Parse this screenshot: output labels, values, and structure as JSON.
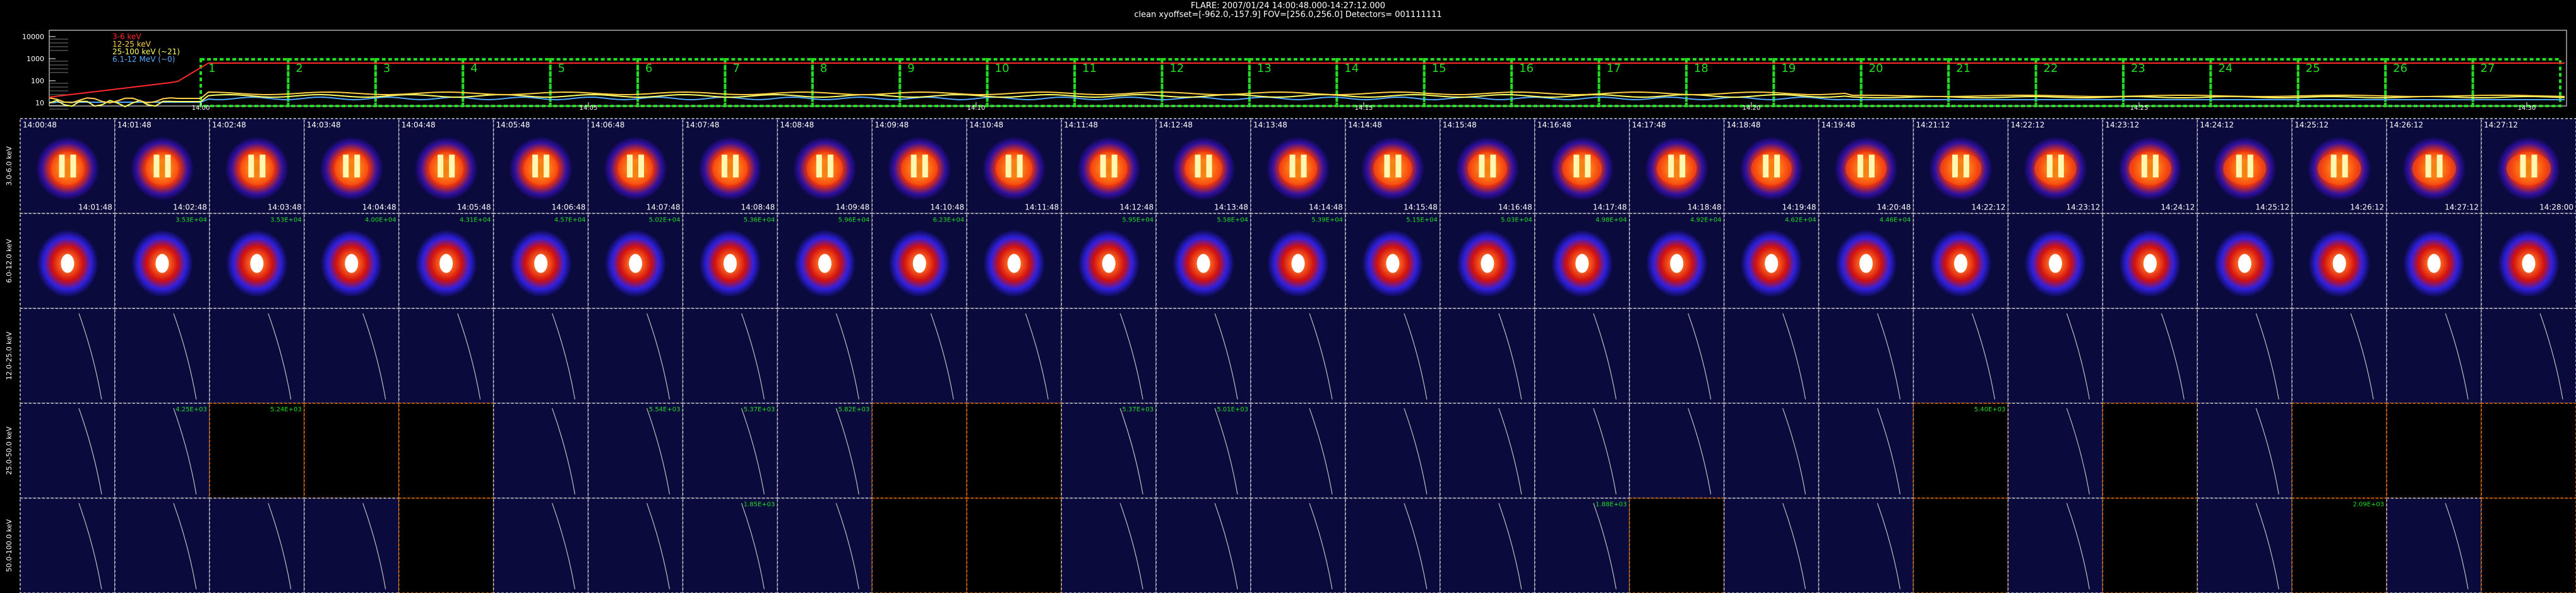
{
  "header": {
    "title": "FLARE: 2007/01/24  14:00:48.000-14:27:12.000",
    "subtitle": "clean    xyoffset=[-962.0,-157.9]    FOV=[256.0,256.0]    Detectors= 001111111"
  },
  "lightcurve": {
    "yticks": [
      "10000",
      "1000",
      "100",
      "10"
    ],
    "xticks": [
      "14:00",
      "14:05",
      "14:10",
      "14:15",
      "14:20",
      "14:25",
      "14:30"
    ],
    "legend": [
      {
        "label": "3-6 keV",
        "color": "#ff2a2a"
      },
      {
        "label": "12-25 keV",
        "color": "#ffd24a"
      },
      {
        "label": "25-100 keV (~21)",
        "color": "#ffff66"
      },
      {
        "label": "6.1-12 MeV (~0)",
        "color": "#55aaff"
      }
    ],
    "interval_labels": [
      "1",
      "2",
      "3",
      "4",
      "5",
      "6",
      "7",
      "8",
      "9",
      "10",
      "11",
      "12",
      "13",
      "14",
      "15",
      "16",
      "17",
      "18",
      "19",
      "20",
      "21",
      "22",
      "23",
      "24",
      "25",
      "26",
      "27"
    ],
    "box_color": "#22dd22"
  },
  "grid": {
    "row_labels": [
      "3.0-6.0 keV",
      "6.0-12.0 keV",
      "12.0-25.0 keV",
      "25.0-50.0 keV",
      "50.0-100.0 keV"
    ],
    "start_times": [
      "14:00:48",
      "14:01:48",
      "14:02:48",
      "14:03:48",
      "14:04:48",
      "14:05:48",
      "14:06:48",
      "14:07:48",
      "14:08:48",
      "14:09:48",
      "14:10:48",
      "14:11:48",
      "14:12:48",
      "14:13:48",
      "14:14:48",
      "14:15:48",
      "14:16:48",
      "14:17:48",
      "14:18:48",
      "14:19:48",
      "14:21:12",
      "14:22:12",
      "14:23:12",
      "14:24:12",
      "14:25:12",
      "14:26:12",
      "14:27:12"
    ],
    "end_times": [
      "14:01:48",
      "14:02:48",
      "14:03:48",
      "14:04:48",
      "14:05:48",
      "14:06:48",
      "14:07:48",
      "14:08:48",
      "14:09:48",
      "14:10:48",
      "14:11:48",
      "14:12:48",
      "14:13:48",
      "14:14:48",
      "14:15:48",
      "14:16:48",
      "14:17:48",
      "14:18:48",
      "14:19:48",
      "14:20:48",
      "14:22:12",
      "14:23:12",
      "14:24:12",
      "14:25:12",
      "14:26:12",
      "14:27:12",
      "14:28:00"
    ],
    "row2_values": [
      "",
      "3.53E+04",
      "3.53E+04",
      "4.00E+04",
      "4.31E+04",
      "4.57E+04",
      "5.02E+04",
      "5.36E+04",
      "5.96E+04",
      "6.23E+04",
      "",
      "5.95E+04",
      "5.58E+04",
      "5.39E+04",
      "5.15E+04",
      "5.03E+04",
      "4.98E+04",
      "4.92E+04",
      "4.62E+04",
      "4.46E+04",
      "",
      "",
      "",
      "",
      "",
      "",
      ""
    ],
    "row3_values": [
      "",
      "",
      "",
      "",
      "",
      "",
      "",
      "",
      "",
      "",
      "",
      "",
      "",
      "",
      "",
      "",
      "",
      "",
      "",
      "",
      "",
      "",
      "",
      "",
      "",
      "",
      ""
    ],
    "row4_values": [
      "",
      "4.25E+03",
      "5.24E+03",
      "",
      "",
      "",
      "5.54E+03",
      "5.37E+03",
      "5.82E+03",
      "",
      "",
      "5.37E+03",
      "5.01E+03",
      "",
      "",
      "",
      "",
      "",
      "",
      "",
      "5.40E+03",
      "",
      "",
      "",
      "",
      "",
      ""
    ],
    "row5_values": [
      "",
      "",
      "",
      "",
      "",
      "",
      "",
      "1.85E+03",
      "",
      "",
      "",
      "",
      "",
      "",
      "",
      "",
      "1.88E+03",
      "",
      "",
      "",
      "",
      "",
      "",
      "",
      "2.09E+03",
      "",
      ""
    ],
    "dark_cells": [
      [
        3,
        2
      ],
      [
        3,
        3
      ],
      [
        3,
        4
      ],
      [
        3,
        9
      ],
      [
        3,
        10
      ],
      [
        3,
        20
      ],
      [
        3,
        22
      ],
      [
        3,
        24
      ],
      [
        3,
        25
      ],
      [
        3,
        26
      ],
      [
        4,
        4
      ],
      [
        4,
        9
      ],
      [
        4,
        10
      ],
      [
        4,
        17
      ],
      [
        4,
        20
      ],
      [
        4,
        22
      ],
      [
        4,
        24
      ],
      [
        4,
        26
      ]
    ],
    "colors": {
      "border": "#cfcfcf",
      "green_text": "#22dd22",
      "dark_border": "#ff7a00",
      "bg_blue": "#0a0a3c"
    }
  }
}
